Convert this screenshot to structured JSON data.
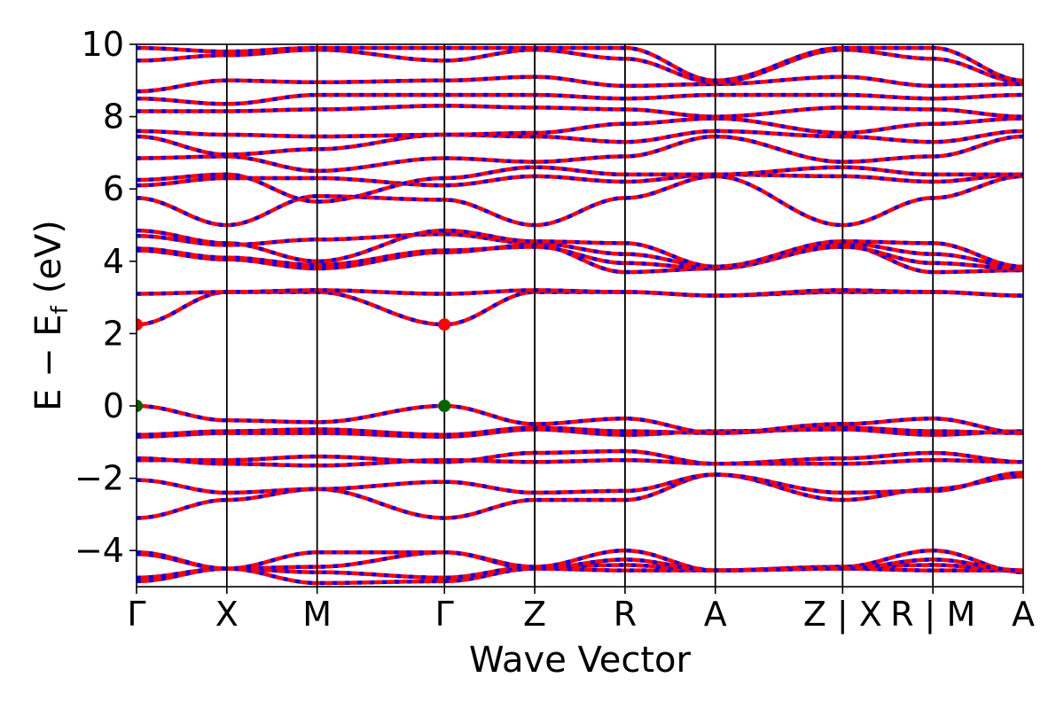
{
  "chart_data": {
    "type": "line",
    "title": "",
    "xlabel": "Wave Vector",
    "ylabel": "E − E_f (eV)",
    "ylabel_parts": {
      "e1": "E − E",
      "sub": "f",
      "unit": "(eV)"
    },
    "ylim": [
      -5,
      10
    ],
    "yticks": [
      "−4",
      "−2",
      "0",
      "2",
      "4",
      "6",
      "8",
      "10"
    ],
    "ytick_values": [
      -4,
      -2,
      0,
      2,
      4,
      6,
      8,
      10
    ],
    "grid": false,
    "kpath": [
      {
        "label": "Γ",
        "x": 0.0
      },
      {
        "label": "X",
        "x": 1.0
      },
      {
        "label": "M",
        "x": 2.0
      },
      {
        "label": "Γ",
        "x": 3.41
      },
      {
        "label": "Z",
        "x": 4.41
      },
      {
        "label": "R",
        "x": 5.41
      },
      {
        "label": "A",
        "x": 6.41
      },
      {
        "label": "Z | X",
        "x": 7.82
      },
      {
        "label": "R | M",
        "x": 8.82
      },
      {
        "label": "A",
        "x": 9.82
      }
    ],
    "series_colors": {
      "solid": "#ff0000",
      "dashed": "#0000ff"
    },
    "cbm_color": "#ff0000",
    "vbm_color": "#006400",
    "markers": [
      {
        "kind": "CBM",
        "x": 0.0,
        "y": 2.25
      },
      {
        "kind": "CBM",
        "x": 3.41,
        "y": 2.25
      },
      {
        "kind": "VBM",
        "x": 0.0,
        "y": 0.0
      },
      {
        "kind": "VBM",
        "x": 3.41,
        "y": 0.0
      }
    ],
    "bands": [
      [
        -4.85,
        -4.5,
        -4.9,
        -4.85,
        -4.5,
        -4.55,
        -4.55,
        -4.5,
        -4.55,
        -4.55
      ],
      [
        -4.75,
        -4.5,
        -4.6,
        -4.75,
        -4.45,
        -4.4,
        -4.55,
        -4.45,
        -4.4,
        -4.55
      ],
      [
        -4.1,
        -4.5,
        -4.05,
        -4.05,
        -4.45,
        -4.0,
        -4.55,
        -4.45,
        -4.0,
        -4.6
      ],
      [
        -4.05,
        -4.5,
        -4.45,
        -4.05,
        -4.5,
        -4.25,
        -4.55,
        -4.5,
        -4.25,
        -4.55
      ],
      [
        -3.1,
        -2.6,
        -2.3,
        -3.1,
        -2.6,
        -2.6,
        -1.9,
        -2.6,
        -2.3,
        -1.95
      ],
      [
        -2.05,
        -2.4,
        -2.3,
        -2.1,
        -2.4,
        -2.35,
        -1.9,
        -2.4,
        -2.35,
        -1.85
      ],
      [
        -1.5,
        -1.5,
        -1.4,
        -1.55,
        -1.3,
        -1.25,
        -1.6,
        -1.45,
        -1.3,
        -1.55
      ],
      [
        -1.45,
        -1.6,
        -1.65,
        -1.5,
        -1.55,
        -1.5,
        -1.6,
        -1.6,
        -1.5,
        -1.55
      ],
      [
        -0.85,
        -0.75,
        -0.75,
        -0.85,
        -0.65,
        -0.8,
        -0.7,
        -0.65,
        -0.8,
        -0.7
      ],
      [
        -0.8,
        -0.7,
        -0.65,
        -0.8,
        -0.6,
        -0.7,
        -0.75,
        -0.6,
        -0.7,
        -0.75
      ],
      [
        0.0,
        -0.4,
        -0.45,
        0.0,
        -0.5,
        -0.35,
        -0.75,
        -0.5,
        -0.35,
        -0.75
      ],
      [
        2.25,
        3.15,
        3.15,
        2.25,
        3.15,
        3.15,
        3.05,
        3.15,
        3.15,
        3.05
      ],
      [
        3.1,
        3.15,
        3.2,
        3.1,
        3.2,
        3.15,
        3.05,
        3.2,
        3.15,
        3.05
      ],
      [
        4.3,
        4.05,
        3.8,
        4.25,
        4.45,
        3.7,
        3.8,
        4.45,
        3.7,
        3.75
      ],
      [
        4.35,
        4.1,
        3.9,
        4.3,
        4.4,
        3.95,
        3.8,
        4.4,
        3.95,
        3.8
      ],
      [
        4.7,
        4.45,
        4.6,
        4.75,
        4.5,
        4.2,
        3.85,
        4.5,
        4.2,
        3.85
      ],
      [
        4.85,
        4.5,
        4.0,
        4.85,
        4.55,
        4.5,
        3.85,
        4.55,
        4.5,
        3.85
      ],
      [
        5.75,
        5.0,
        5.8,
        5.7,
        5.0,
        5.75,
        6.35,
        5.0,
        5.75,
        6.35
      ],
      [
        6.1,
        6.3,
        6.3,
        6.1,
        6.35,
        6.2,
        6.4,
        6.35,
        6.2,
        6.4
      ],
      [
        6.25,
        6.4,
        5.65,
        6.3,
        6.6,
        6.4,
        6.4,
        6.6,
        6.4,
        6.4
      ],
      [
        6.85,
        6.9,
        6.5,
        6.85,
        6.75,
        6.9,
        7.45,
        6.75,
        6.9,
        7.45
      ],
      [
        7.45,
        6.95,
        7.1,
        7.5,
        7.45,
        7.3,
        7.6,
        7.45,
        7.3,
        7.6
      ],
      [
        7.6,
        7.5,
        7.45,
        7.5,
        7.55,
        7.8,
        7.95,
        7.55,
        7.8,
        7.95
      ],
      [
        8.15,
        8.15,
        8.2,
        8.3,
        8.25,
        8.2,
        8.0,
        8.25,
        8.2,
        8.0
      ],
      [
        8.5,
        8.35,
        8.6,
        8.6,
        8.6,
        8.5,
        8.6,
        8.6,
        8.5,
        8.6
      ],
      [
        8.7,
        9.0,
        8.95,
        9.0,
        9.1,
        8.85,
        8.9,
        9.1,
        8.85,
        8.9
      ],
      [
        9.55,
        9.7,
        9.85,
        9.55,
        9.85,
        9.6,
        8.95,
        9.85,
        9.6,
        8.95
      ],
      [
        9.9,
        9.8,
        9.9,
        9.9,
        9.9,
        9.9,
        9.0,
        9.9,
        9.9,
        9.0
      ]
    ]
  }
}
